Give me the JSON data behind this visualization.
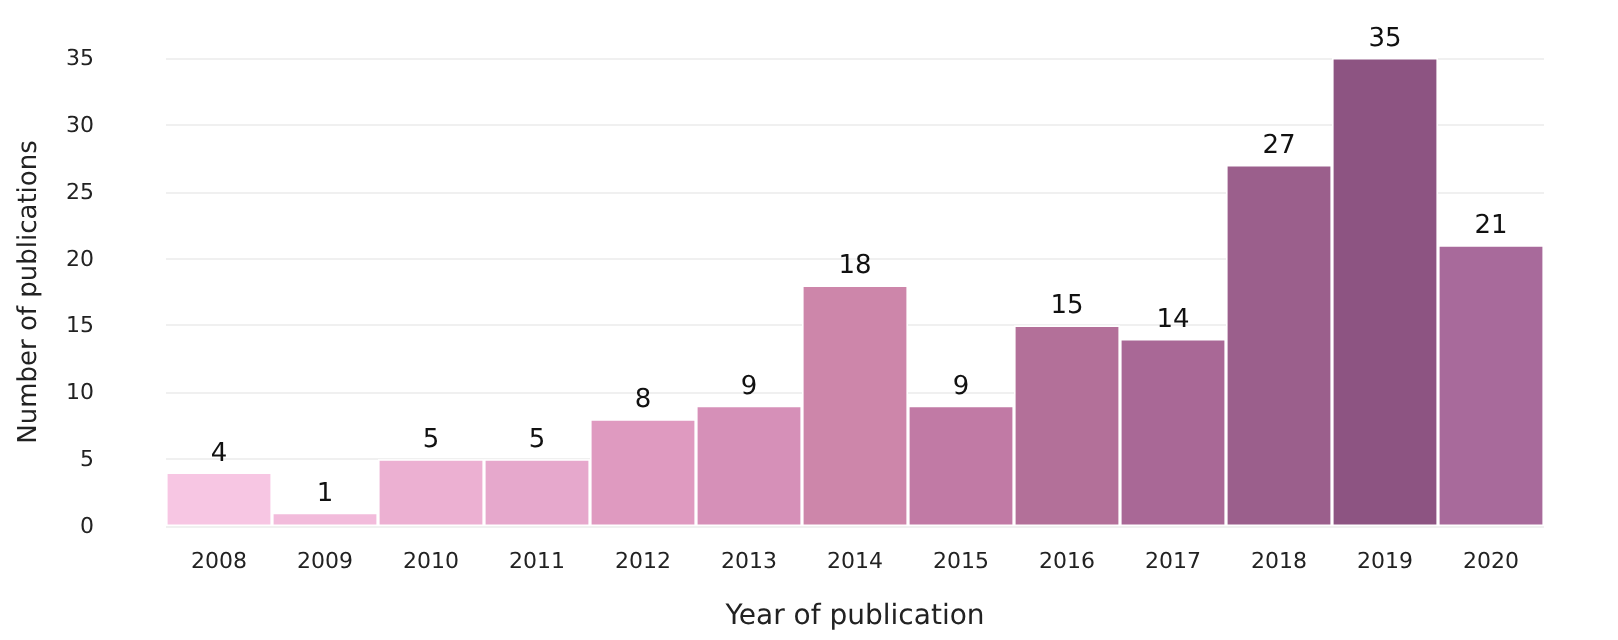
{
  "chart_data": {
    "type": "bar",
    "xlabel": "Year of publication",
    "ylabel": "Number of publications",
    "categories": [
      "2008",
      "2009",
      "2010",
      "2011",
      "2012",
      "2013",
      "2014",
      "2015",
      "2016",
      "2017",
      "2018",
      "2019",
      "2020"
    ],
    "values": [
      4,
      1,
      5,
      5,
      8,
      9,
      18,
      9,
      15,
      14,
      27,
      35,
      21
    ],
    "colors": [
      "#f7c6e3",
      "#f2bbdb",
      "#ecb0d2",
      "#e6a8cc",
      "#df9ac0",
      "#d690b8",
      "#cd86aa",
      "#c17aa5",
      "#b37099",
      "#a96896",
      "#9b5f8c",
      "#8d5482",
      "#a86a9b"
    ],
    "data_labels": true,
    "ylim": [
      0,
      35
    ],
    "yticks": [
      0,
      5,
      10,
      15,
      20,
      25,
      30,
      35
    ],
    "grid": "y"
  }
}
